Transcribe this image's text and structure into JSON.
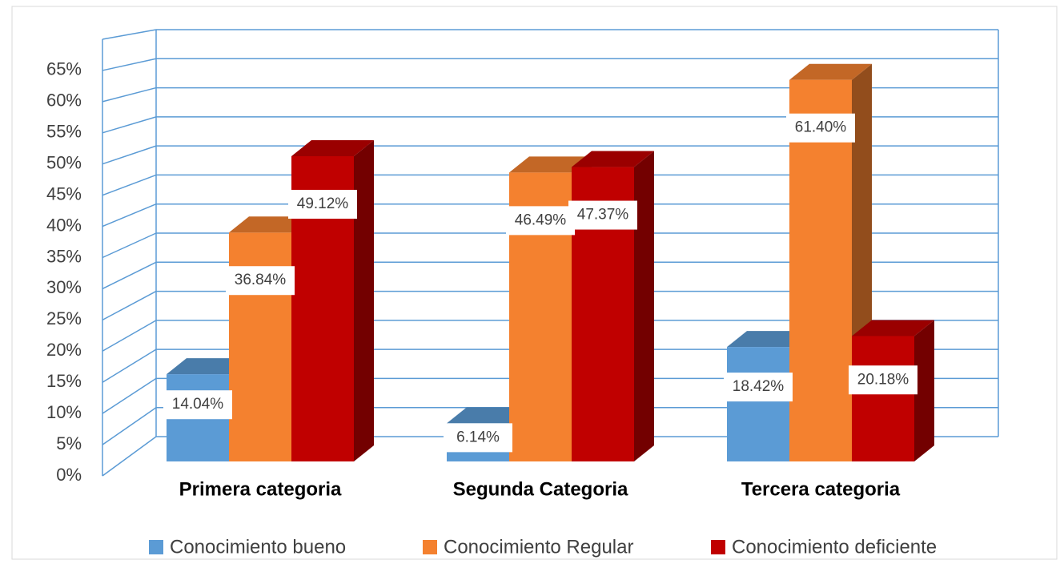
{
  "chart_data": {
    "type": "bar3d",
    "categories": [
      "Primera categoria",
      "Segunda Categoria",
      "Tercera categoria"
    ],
    "series": [
      {
        "name": "Conocimiento bueno",
        "color": "#5b9bd5",
        "values": [
          14.04,
          6.14,
          18.42
        ],
        "value_labels": [
          "14.04%",
          "6.14%",
          "18.42%"
        ]
      },
      {
        "name": "Conocimiento Regular",
        "color": "#f4812f",
        "values": [
          36.84,
          46.49,
          61.4
        ],
        "value_labels": [
          "36.84%",
          "46.49%",
          "61.40%"
        ]
      },
      {
        "name": "Conocimiento deficiente",
        "color": "#c00000",
        "values": [
          49.12,
          47.37,
          20.18
        ],
        "value_labels": [
          "49.12%",
          "47.37%",
          "20.18%"
        ]
      }
    ],
    "ylim": [
      0,
      70
    ],
    "yticks": [
      {
        "value": 0,
        "label": "0%"
      },
      {
        "value": 5,
        "label": "5%"
      },
      {
        "value": 10,
        "label": "10%"
      },
      {
        "value": 15,
        "label": "15%"
      },
      {
        "value": 20,
        "label": "20%"
      },
      {
        "value": 25,
        "label": "25%"
      },
      {
        "value": 30,
        "label": "30%"
      },
      {
        "value": 35,
        "label": "35%"
      },
      {
        "value": 40,
        "label": "40%"
      },
      {
        "value": 45,
        "label": "45%"
      },
      {
        "value": 50,
        "label": "50%"
      },
      {
        "value": 55,
        "label": "55%"
      },
      {
        "value": 60,
        "label": "60%"
      },
      {
        "value": 65,
        "label": "65%"
      }
    ],
    "grid": true,
    "legend": "bottom"
  }
}
